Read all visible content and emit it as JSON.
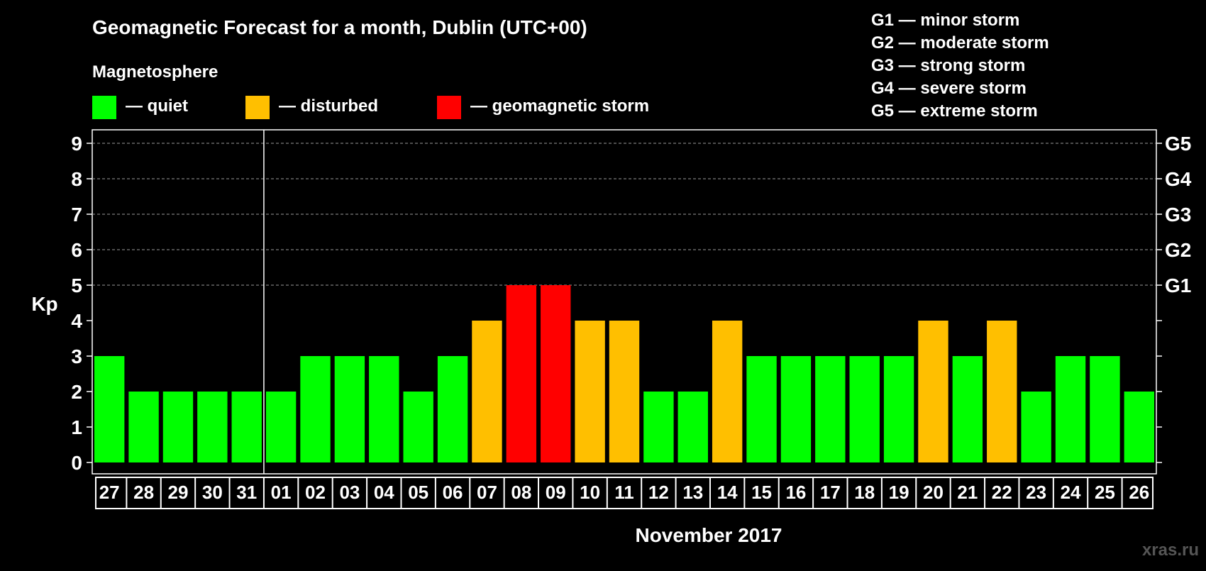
{
  "chart_data": {
    "type": "bar",
    "title": "Geomagnetic Forecast for a month, Dublin (UTC+00)",
    "legend_title": "Magnetosphere",
    "legend": [
      {
        "key": "quiet",
        "label": "— quiet",
        "color": "#00ff00"
      },
      {
        "key": "disturbed",
        "label": "— disturbed",
        "color": "#ffbf00"
      },
      {
        "key": "storm",
        "label": "— geomagnetic storm",
        "color": "#ff0000"
      }
    ],
    "storm_levels": [
      {
        "label": "G1 — minor storm"
      },
      {
        "label": "G2 — moderate storm"
      },
      {
        "label": "G3 — strong storm"
      },
      {
        "label": "G4 — severe storm"
      },
      {
        "label": "G5 — extreme storm"
      }
    ],
    "ylabel": "Kp",
    "ylim": [
      0,
      9
    ],
    "yticks": [
      "0",
      "1",
      "2",
      "3",
      "4",
      "5",
      "6",
      "7",
      "8",
      "9"
    ],
    "right_ticks": [
      {
        "value": 5,
        "label": "G1"
      },
      {
        "value": 6,
        "label": "G2"
      },
      {
        "value": 7,
        "label": "G3"
      },
      {
        "value": 8,
        "label": "G4"
      },
      {
        "value": 9,
        "label": "G5"
      }
    ],
    "dashed_grid_from": 5,
    "xlabel": "November 2017",
    "month_boundary_after_index": 4,
    "categories": [
      "27",
      "28",
      "29",
      "30",
      "31",
      "01",
      "02",
      "03",
      "04",
      "05",
      "06",
      "07",
      "08",
      "09",
      "10",
      "11",
      "12",
      "13",
      "14",
      "15",
      "16",
      "17",
      "18",
      "19",
      "20",
      "21",
      "22",
      "23",
      "24",
      "25",
      "26"
    ],
    "values": [
      3,
      2,
      2,
      2,
      2,
      2,
      3,
      3,
      3,
      2,
      3,
      4,
      5,
      5,
      4,
      4,
      2,
      2,
      4,
      3,
      3,
      3,
      3,
      3,
      4,
      3,
      4,
      2,
      3,
      3,
      2
    ]
  },
  "watermark": "xras.ru"
}
